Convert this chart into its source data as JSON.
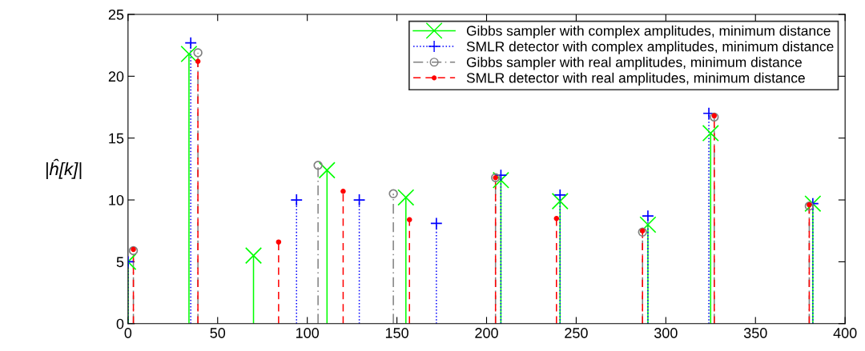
{
  "chart_data": {
    "type": "lollipop",
    "ylabel": "|ĥ[k]|",
    "xlim": [
      0,
      400
    ],
    "ylim": [
      0,
      25
    ],
    "xticks": [
      0,
      50,
      100,
      150,
      200,
      250,
      300,
      350,
      400
    ],
    "yticks": [
      0,
      5,
      10,
      15,
      20,
      25
    ],
    "grid": false,
    "legend": "top right",
    "series": [
      {
        "name": "Gibbs sampler with complex amplitudes, minimum distance",
        "color": "#00ff00",
        "marker": "cross",
        "line_style": "solid",
        "x": [
          0,
          34,
          70,
          111,
          155,
          208,
          241,
          290,
          325,
          382
        ],
        "values": [
          5.0,
          21.8,
          5.5,
          12.4,
          10.2,
          11.6,
          9.9,
          8.0,
          15.4,
          9.7
        ]
      },
      {
        "name": "SMLR detector with complex amplitudes, minimum distance",
        "color": "#0000ff",
        "marker": "plus",
        "line_style": "dotted",
        "x": [
          0,
          35,
          94,
          129,
          172,
          208,
          241,
          290,
          324,
          382
        ],
        "values": [
          5.0,
          22.7,
          10.0,
          10.0,
          8.1,
          12.0,
          10.4,
          8.7,
          17.0,
          9.7
        ]
      },
      {
        "name": "Gibbs sampler with real amplitudes, minimum distance",
        "color": "#808080",
        "marker": "circle",
        "line_style": "dashdot",
        "x": [
          3,
          39,
          106,
          148,
          205,
          287,
          327,
          380
        ],
        "values": [
          5.9,
          21.9,
          12.8,
          10.5,
          11.8,
          7.4,
          16.7,
          9.5
        ]
      },
      {
        "name": "SMLR detector with real amplitudes, minimum distance",
        "color": "#ff0000",
        "marker": "dot",
        "line_style": "dashed",
        "x": [
          3,
          39,
          84,
          120,
          157,
          205,
          239,
          287,
          327,
          380
        ],
        "values": [
          6.0,
          21.2,
          6.6,
          10.7,
          8.4,
          11.8,
          8.5,
          7.5,
          16.8,
          9.6
        ]
      }
    ]
  }
}
